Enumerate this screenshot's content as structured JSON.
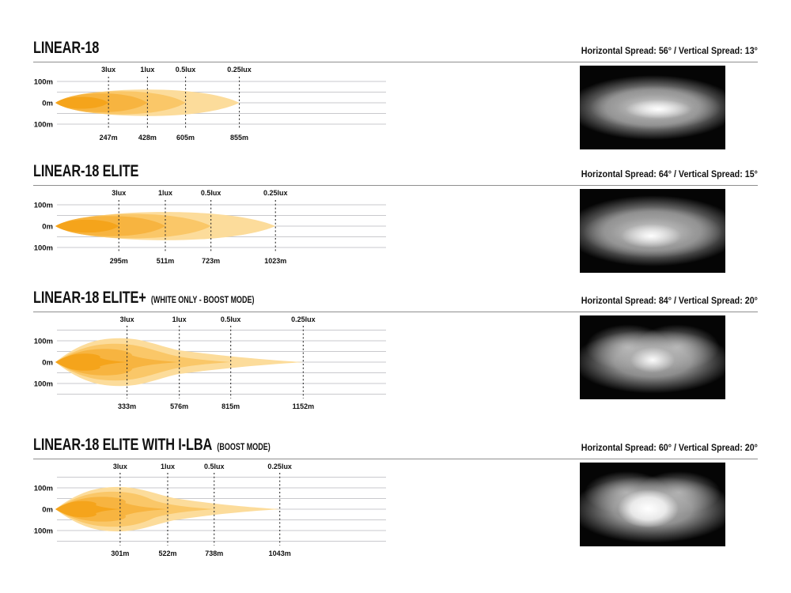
{
  "page": {
    "background": "#ffffff",
    "text_color": "#111111",
    "grid_color": "#c9c9cd",
    "rule_color": "#8f8f8f",
    "beam_colors": {
      "lux3_inner": "#F5A41B",
      "lux1": "#F7B440",
      "lux05": "#FAC768",
      "lux025_outer": "#FCDC9B"
    }
  },
  "sections": [
    {
      "title": "LINEAR-18",
      "subtitle": "",
      "spread": "Horizontal Spread: 56°  /  Vertical Spread: 13°"
    },
    {
      "title": "LINEAR-18 ELITE",
      "subtitle": "",
      "spread": "Horizontal Spread: 64°  /  Vertical Spread: 15°"
    },
    {
      "title": "LINEAR-18 ELITE+",
      "subtitle": "(WHITE ONLY - BOOST MODE)",
      "spread": "Horizontal Spread: 84°  /  Vertical Spread: 20°"
    },
    {
      "title": "LINEAR-18 ELITE WITH I-LBA",
      "subtitle": "(BOOST MODE)",
      "spread": "Horizontal Spread: 60°  /  Vertical Spread: 20°"
    }
  ],
  "chart_data": [
    {
      "type": "area",
      "title": "LINEAR-18",
      "subtitle": "",
      "horizontal_spread_deg": 56,
      "vertical_spread_deg": 13,
      "shape": "lens",
      "x_unit": "m",
      "y_unit": "m",
      "ytick_labels": [
        {
          "m": 100,
          "label": "100m"
        },
        {
          "m": 0,
          "label": "0m"
        },
        {
          "m": -100,
          "label": "-100m"
        }
      ],
      "grid_step_m": 50,
      "grid_range_m": [
        -100,
        100
      ],
      "isolux_contours": [
        {
          "lux": 3,
          "lux_label": "3lux",
          "distance_m": 247,
          "distance_label": "247m",
          "half_width_m": 28,
          "hump_x_m": 0,
          "color": "#F5A41B"
        },
        {
          "lux": 1,
          "lux_label": "1lux",
          "distance_m": 428,
          "distance_label": "428m",
          "half_width_m": 44,
          "hump_x_m": 0,
          "color": "#F7B440"
        },
        {
          "lux": 0.5,
          "lux_label": "0.5lux",
          "distance_m": 605,
          "distance_label": "605m",
          "half_width_m": 54,
          "hump_x_m": 0,
          "color": "#FAC768"
        },
        {
          "lux": 0.25,
          "lux_label": "0.25lux",
          "distance_m": 855,
          "distance_label": "855m",
          "half_width_m": 62,
          "hump_x_m": 0,
          "color": "#FCDC9B"
        }
      ]
    },
    {
      "type": "area",
      "title": "LINEAR-18 ELITE",
      "subtitle": "",
      "horizontal_spread_deg": 64,
      "vertical_spread_deg": 15,
      "shape": "lens",
      "x_unit": "m",
      "y_unit": "m",
      "ytick_labels": [
        {
          "m": 100,
          "label": "100m"
        },
        {
          "m": 0,
          "label": "0m"
        },
        {
          "m": -100,
          "label": "-100m"
        }
      ],
      "grid_step_m": 50,
      "grid_range_m": [
        -100,
        100
      ],
      "isolux_contours": [
        {
          "lux": 3,
          "lux_label": "3lux",
          "distance_m": 295,
          "distance_label": "295m",
          "half_width_m": 30,
          "hump_x_m": 0,
          "color": "#F5A41B"
        },
        {
          "lux": 1,
          "lux_label": "1lux",
          "distance_m": 511,
          "distance_label": "511m",
          "half_width_m": 47,
          "hump_x_m": 0,
          "color": "#F7B440"
        },
        {
          "lux": 0.5,
          "lux_label": "0.5lux",
          "distance_m": 723,
          "distance_label": "723m",
          "half_width_m": 57,
          "hump_x_m": 0,
          "color": "#FAC768"
        },
        {
          "lux": 0.25,
          "lux_label": "0.25lux",
          "distance_m": 1023,
          "distance_label": "1023m",
          "half_width_m": 66,
          "hump_x_m": 0,
          "color": "#FCDC9B"
        }
      ]
    },
    {
      "type": "area",
      "title": "LINEAR-18 ELITE+",
      "subtitle": "(WHITE ONLY - BOOST MODE)",
      "horizontal_spread_deg": 84,
      "vertical_spread_deg": 20,
      "shape": "spike",
      "x_unit": "m",
      "y_unit": "m",
      "ytick_labels": [
        {
          "m": 100,
          "label": "100m"
        },
        {
          "m": 0,
          "label": "0m"
        },
        {
          "m": -100,
          "label": "-100m"
        }
      ],
      "grid_step_m": 50,
      "grid_range_m": [
        -150,
        150
      ],
      "isolux_contours": [
        {
          "lux": 3,
          "lux_label": "3lux",
          "distance_m": 333,
          "distance_label": "333m",
          "half_width_m": 40,
          "hump_x_m": 140,
          "color": "#F5A41B"
        },
        {
          "lux": 1,
          "lux_label": "1lux",
          "distance_m": 576,
          "distance_label": "576m",
          "half_width_m": 62,
          "hump_x_m": 230,
          "color": "#F7B440"
        },
        {
          "lux": 0.5,
          "lux_label": "0.5lux",
          "distance_m": 815,
          "distance_label": "815m",
          "half_width_m": 86,
          "hump_x_m": 280,
          "color": "#FAC768"
        },
        {
          "lux": 0.25,
          "lux_label": "0.25lux",
          "distance_m": 1152,
          "distance_label": "1152m",
          "half_width_m": 112,
          "hump_x_m": 300,
          "color": "#FCDC9B"
        }
      ]
    },
    {
      "type": "area",
      "title": "LINEAR-18 ELITE WITH I-LBA",
      "subtitle": "(BOOST MODE)",
      "horizontal_spread_deg": 60,
      "vertical_spread_deg": 20,
      "shape": "spike",
      "x_unit": "m",
      "y_unit": "m",
      "ytick_labels": [
        {
          "m": 100,
          "label": "100m"
        },
        {
          "m": 0,
          "label": "0m"
        },
        {
          "m": -100,
          "label": "-100m"
        }
      ],
      "grid_step_m": 50,
      "grid_range_m": [
        -150,
        150
      ],
      "isolux_contours": [
        {
          "lux": 3,
          "lux_label": "3lux",
          "distance_m": 301,
          "distance_label": "301m",
          "half_width_m": 38,
          "hump_x_m": 130,
          "color": "#F5A41B"
        },
        {
          "lux": 1,
          "lux_label": "1lux",
          "distance_m": 522,
          "distance_label": "522m",
          "half_width_m": 58,
          "hump_x_m": 220,
          "color": "#F7B440"
        },
        {
          "lux": 0.5,
          "lux_label": "0.5lux",
          "distance_m": 738,
          "distance_label": "738m",
          "half_width_m": 82,
          "hump_x_m": 270,
          "color": "#FAC768"
        },
        {
          "lux": 0.25,
          "lux_label": "0.25lux",
          "distance_m": 1043,
          "distance_label": "1043m",
          "half_width_m": 104,
          "hump_x_m": 290,
          "color": "#FCDC9B"
        }
      ]
    }
  ]
}
